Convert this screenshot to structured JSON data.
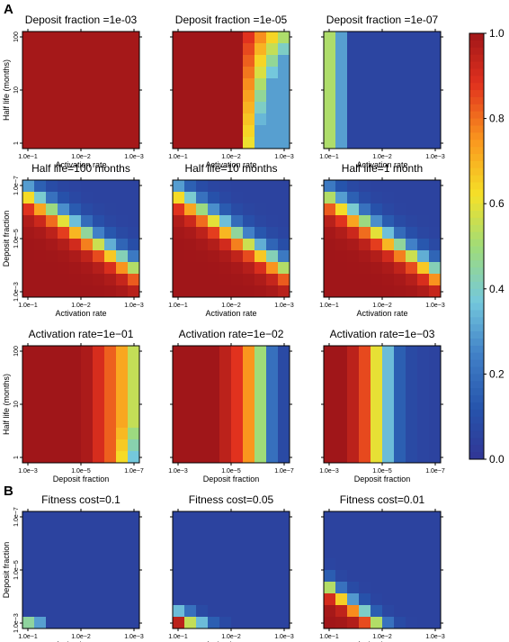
{
  "figure": {
    "section_a_label": "A",
    "section_b_label": "B"
  },
  "colorbar": {
    "ticks": [
      "1.0",
      "0.8",
      "0.6",
      "0.4",
      "0.2",
      "0.0"
    ],
    "tick_values": [
      1.0,
      0.8,
      0.6,
      0.4,
      0.2,
      0.0
    ]
  },
  "chart_data": [
    {
      "type": "heatmap",
      "title": "Deposit fraction =1e-03",
      "xlabel": "Activation rate",
      "ylabel": "Half life (months)",
      "xticks": [
        "1.0e−1",
        "1.0e−2",
        "1.0e−3"
      ],
      "yticks": [
        "1",
        "10",
        "100"
      ],
      "xlim": [
        0.1,
        0.001
      ],
      "ylim": [
        1,
        100
      ],
      "x_scale": "log",
      "y_scale": "log",
      "grid_size": [
        10,
        10
      ],
      "value_description": "all cells approx 1.0"
    },
    {
      "type": "heatmap",
      "title": "Deposit fraction =1e-05",
      "xlabel": "Activation rate",
      "ylabel": "",
      "xticks": [
        "1.0e−1",
        "1.0e−2",
        "1.0e−3"
      ],
      "yticks": [
        "",
        "",
        ""
      ],
      "xlim": [
        0.1,
        0.001
      ],
      "ylim": [
        1,
        100
      ],
      "x_scale": "log",
      "y_scale": "log",
      "grid_size": [
        10,
        10
      ],
      "value_description": "approx 1.0 at high activation rate, dropping to approx 0.3 at lowest activation rate and short half life"
    },
    {
      "type": "heatmap",
      "title": "Deposit fraction =1e-07",
      "xlabel": "Activation rate",
      "ylabel": "",
      "xticks": [
        "1.0e−1",
        "1.0e−2",
        "1.0e−3"
      ],
      "yticks": [
        "",
        "",
        ""
      ],
      "xlim": [
        0.1,
        0.001
      ],
      "ylim": [
        1,
        100
      ],
      "x_scale": "log",
      "y_scale": "log",
      "grid_size": [
        10,
        10
      ],
      "value_description": "approx 0.5 at highest activation rate, approx 0.05 elsewhere"
    },
    {
      "type": "heatmap",
      "title": "Half life=100 months",
      "xlabel": "Activation rate",
      "ylabel": "Deposit fraction",
      "xticks": [
        "1.0e−1",
        "1.0e−2",
        "1.0e−3"
      ],
      "yticks": [
        "1.0e−3",
        "1.0e−5",
        "1.0e−7"
      ],
      "xlim": [
        0.1,
        0.001
      ],
      "ylim": [
        0.001,
        1e-07
      ],
      "x_scale": "log",
      "y_scale": "log",
      "grid_size": [
        10,
        10
      ],
      "value_description": "approx 1.0 below a diagonal band, approx 0.05 above it"
    },
    {
      "type": "heatmap",
      "title": "Half life=10 months",
      "xlabel": "Activation rate",
      "ylabel": "",
      "xticks": [
        "1.0e−1",
        "1.0e−2",
        "1.0e−3"
      ],
      "yticks": [
        "",
        "",
        ""
      ],
      "xlim": [
        0.1,
        0.001
      ],
      "ylim": [
        0.001,
        1e-07
      ],
      "x_scale": "log",
      "y_scale": "log",
      "grid_size": [
        10,
        10
      ],
      "value_description": "approx 1.0 below a diagonal band, approx 0.05 above it"
    },
    {
      "type": "heatmap",
      "title": "Half life=1 month",
      "xlabel": "Activation rate",
      "ylabel": "",
      "xticks": [
        "1.0e−1",
        "1.0e−2",
        "1.0e−3"
      ],
      "yticks": [
        "",
        "",
        ""
      ],
      "xlim": [
        0.1,
        0.001
      ],
      "ylim": [
        0.001,
        1e-07
      ],
      "x_scale": "log",
      "y_scale": "log",
      "grid_size": [
        10,
        10
      ],
      "value_description": "approx 1.0 below a diagonal band, approx 0.05 above it"
    },
    {
      "type": "heatmap",
      "title": "Activation rate=1e−01",
      "xlabel": "Deposit fraction",
      "ylabel": "Half life (months)",
      "xticks": [
        "1.0e−3",
        "1.0e−5",
        "1.0e−7"
      ],
      "yticks": [
        "1",
        "10",
        "100"
      ],
      "xlim": [
        0.001,
        1e-07
      ],
      "ylim": [
        1,
        100
      ],
      "x_scale": "log",
      "y_scale": "log",
      "grid_size": [
        10,
        10
      ],
      "value_description": "approx 1.0 at high deposit fraction, approx 0.5 at lowest deposit fraction"
    },
    {
      "type": "heatmap",
      "title": "Activation rate=1e−02",
      "xlabel": "Deposit fraction",
      "ylabel": "",
      "xticks": [
        "1.0e−3",
        "1.0e−5",
        "1.0e−7"
      ],
      "yticks": [
        "",
        "",
        ""
      ],
      "xlim": [
        0.001,
        1e-07
      ],
      "ylim": [
        1,
        100
      ],
      "x_scale": "log",
      "y_scale": "log",
      "grid_size": [
        10,
        10
      ],
      "value_description": "approx 1.0 at high deposit fraction, approx 0.05 at lowest deposit fraction"
    },
    {
      "type": "heatmap",
      "title": "Activation rate=1e−03",
      "xlabel": "Deposit fraction",
      "ylabel": "",
      "xticks": [
        "1.0e−3",
        "1.0e−5",
        "1.0e−7"
      ],
      "yticks": [
        "",
        "",
        ""
      ],
      "xlim": [
        0.001,
        1e-07
      ],
      "ylim": [
        1,
        100
      ],
      "x_scale": "log",
      "y_scale": "log",
      "grid_size": [
        10,
        10
      ],
      "value_description": "approx 1.0 at high deposit fraction, approx 0.05 at low deposit fraction"
    },
    {
      "type": "heatmap",
      "title": "Fitness cost=0.1",
      "xlabel": "Activation rate",
      "ylabel": "Deposit fraction",
      "xticks": [
        "1.0e−1",
        "1.0e−2",
        "1.0e−3"
      ],
      "yticks": [
        "1.0e−3",
        "1.0e−5",
        "1.0e−7"
      ],
      "xlim": [
        0.1,
        0.001
      ],
      "ylim": [
        0.001,
        1e-07
      ],
      "x_scale": "log",
      "y_scale": "log",
      "grid_size": [
        10,
        10
      ],
      "value_description": "approx 0.05 nearly everywhere, slightly higher at high deposit fraction and high activation rate"
    },
    {
      "type": "heatmap",
      "title": "Fitness cost=0.05",
      "xlabel": "Activation rate",
      "ylabel": "",
      "xticks": [
        "1.0e−1",
        "1.0e−2",
        "1.0e−3"
      ],
      "yticks": [
        "",
        "",
        ""
      ],
      "xlim": [
        0.1,
        0.001
      ],
      "ylim": [
        0.001,
        1e-07
      ],
      "x_scale": "log",
      "y_scale": "log",
      "grid_size": [
        10,
        10
      ],
      "value_description": "approx 0.05 nearly everywhere, up to approx 1.0 at high deposit fraction and high activation rate"
    },
    {
      "type": "heatmap",
      "title": "Fitness cost=0.01",
      "xlabel": "Activation rate",
      "ylabel": "",
      "xticks": [
        "1.0e−1",
        "1.0e−2",
        "1.0e−3"
      ],
      "yticks": [
        "",
        "",
        ""
      ],
      "xlim": [
        0.1,
        0.001
      ],
      "ylim": [
        0.001,
        1e-07
      ],
      "x_scale": "log",
      "y_scale": "log",
      "grid_size": [
        10,
        10
      ],
      "value_description": "approx 1.0 in lower-left corner along a diagonal band, approx 0.05 elsewhere"
    }
  ]
}
